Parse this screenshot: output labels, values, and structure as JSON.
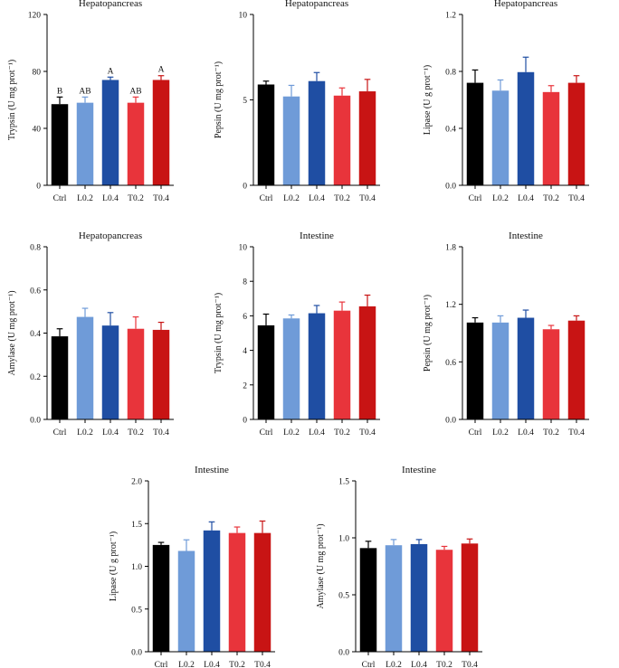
{
  "colors": {
    "Ctrl": "#000000",
    "L0.2": "#6f9bd8",
    "L0.4": "#1f4ea3",
    "T0.2": "#e8343b",
    "T0.4": "#c81414",
    "axis": "#000000"
  },
  "chart_data": [
    {
      "type": "bar",
      "title": "Hepatopancreas",
      "ylabel": "Trypsin (U mg prot⁻¹)",
      "categories": [
        "Ctrl",
        "L0.2",
        "L0.4",
        "T0.2",
        "T0.4"
      ],
      "values": [
        57,
        58,
        74,
        58,
        74
      ],
      "errors": [
        5,
        4,
        2,
        4,
        3
      ],
      "significance": [
        "B",
        "AB",
        "A",
        "AB",
        "A"
      ],
      "ylim": [
        0,
        120
      ],
      "yticks": [
        0,
        40,
        80,
        120
      ]
    },
    {
      "type": "bar",
      "title": "Hepatopancreas",
      "ylabel": "Pepsin (U mg prot⁻¹)",
      "categories": [
        "Ctrl",
        "L0.2",
        "L0.4",
        "T0.2",
        "T0.4"
      ],
      "values": [
        5.9,
        5.2,
        6.1,
        5.25,
        5.5
      ],
      "errors": [
        0.2,
        0.65,
        0.5,
        0.45,
        0.7
      ],
      "ylim": [
        0,
        10
      ],
      "yticks": [
        0,
        5,
        10
      ]
    },
    {
      "type": "bar",
      "title": "Hepatopancreas",
      "ylabel": "Lipase (U g prot⁻¹)",
      "categories": [
        "Ctrl",
        "L0.2",
        "L0.4",
        "T0.2",
        "T0.4"
      ],
      "values": [
        0.72,
        0.665,
        0.795,
        0.655,
        0.72
      ],
      "errors": [
        0.09,
        0.075,
        0.105,
        0.045,
        0.05
      ],
      "ylim": [
        0,
        1.2
      ],
      "yticks": [
        0.0,
        0.4,
        0.8,
        1.2
      ]
    },
    {
      "type": "bar",
      "title": "Hepatopancreas",
      "ylabel": "Amylase (U mg prot⁻¹)",
      "categories": [
        "Ctrl",
        "L0.2",
        "L0.4",
        "T0.2",
        "T0.4"
      ],
      "values": [
        0.385,
        0.475,
        0.435,
        0.42,
        0.415
      ],
      "errors": [
        0.035,
        0.04,
        0.06,
        0.055,
        0.035
      ],
      "ylim": [
        0,
        0.8
      ],
      "yticks": [
        0.0,
        0.2,
        0.4,
        0.6,
        0.8
      ]
    },
    {
      "type": "bar",
      "title": "Intestine",
      "ylabel": "Trypsin (U mg prot⁻¹)",
      "categories": [
        "Ctrl",
        "L0.2",
        "L0.4",
        "T0.2",
        "T0.4"
      ],
      "values": [
        5.45,
        5.85,
        6.15,
        6.3,
        6.55
      ],
      "errors": [
        0.65,
        0.2,
        0.45,
        0.5,
        0.65
      ],
      "ylim": [
        0,
        10
      ],
      "yticks": [
        0,
        2,
        4,
        6,
        8,
        10
      ]
    },
    {
      "type": "bar",
      "title": "Intestine",
      "ylabel": "Pepsin (U mg prot⁻¹)",
      "categories": [
        "Ctrl",
        "L0.2",
        "L0.4",
        "T0.2",
        "T0.4"
      ],
      "values": [
        1.01,
        1.01,
        1.06,
        0.94,
        1.03
      ],
      "errors": [
        0.05,
        0.07,
        0.08,
        0.04,
        0.05
      ],
      "ylim": [
        0,
        1.8
      ],
      "yticks": [
        0.0,
        0.6,
        1.2,
        1.8
      ]
    },
    {
      "type": "bar",
      "title": "Intestine",
      "ylabel": "Lipase (U g prot⁻¹)",
      "categories": [
        "Ctrl",
        "L0.2",
        "L0.4",
        "T0.2",
        "T0.4"
      ],
      "values": [
        1.25,
        1.18,
        1.42,
        1.39,
        1.39
      ],
      "errors": [
        0.03,
        0.13,
        0.1,
        0.07,
        0.14
      ],
      "ylim": [
        0,
        2.0
      ],
      "yticks": [
        0.0,
        0.5,
        1.0,
        1.5,
        2.0
      ]
    },
    {
      "type": "bar",
      "title": "Intestine",
      "ylabel": "Amylase (U mg prot⁻¹)",
      "categories": [
        "Ctrl",
        "L0.2",
        "L0.4",
        "T0.2",
        "T0.4"
      ],
      "values": [
        0.91,
        0.935,
        0.945,
        0.895,
        0.95
      ],
      "errors": [
        0.06,
        0.05,
        0.04,
        0.03,
        0.04
      ],
      "ylim": [
        0,
        1.5
      ],
      "yticks": [
        0.0,
        0.5,
        1.0,
        1.5
      ]
    }
  ]
}
